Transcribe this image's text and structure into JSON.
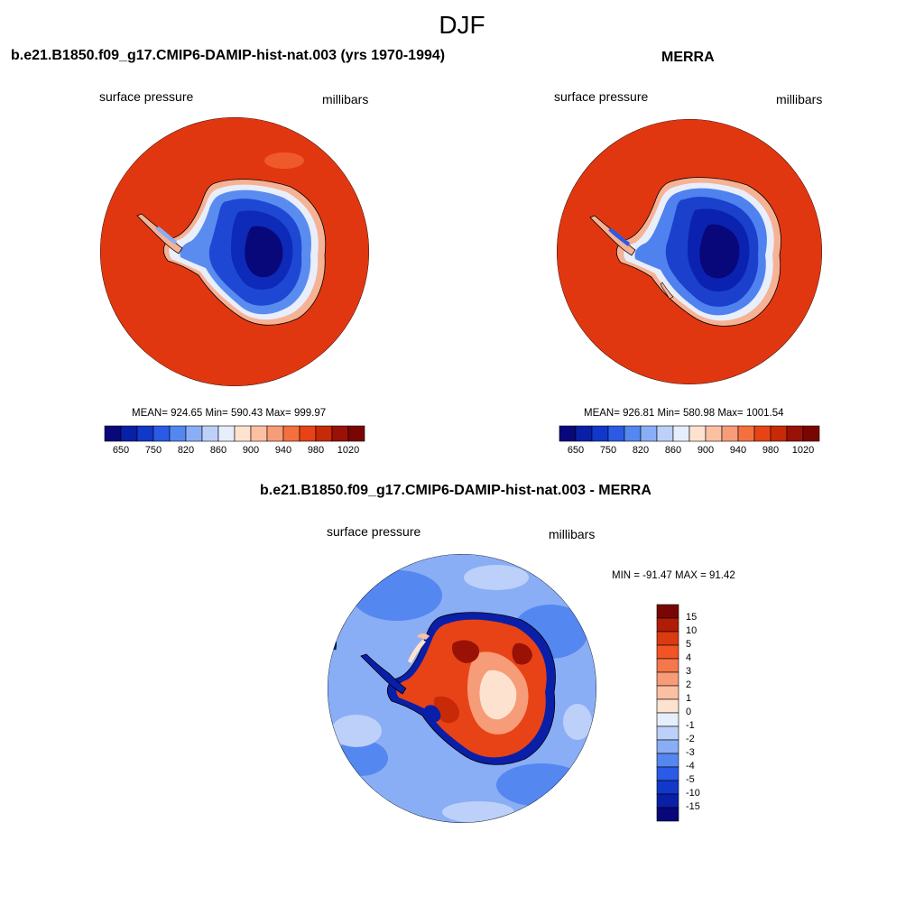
{
  "title": "DJF",
  "panels": [
    {
      "title": "b.e21.B1850.f09_g17.CMIP6-DAMIP-hist-nat.003 (yrs 1970-1994)",
      "left_label": "surface pressure",
      "right_label": "millibars",
      "stats": "MEAN= 924.65  Min= 590.43  Max= 999.97"
    },
    {
      "title": "MERRA",
      "left_label": "surface pressure",
      "right_label": "millibars",
      "stats": "MEAN= 926.81  Min= 580.98  Max= 1001.54"
    },
    {
      "title": "b.e21.B1850.f09_g17.CMIP6-DAMIP-hist-nat.003 - MERRA",
      "left_label": "surface pressure",
      "right_label": "millibars",
      "stats": "MIN = -91.47 MAX =  91.42"
    }
  ],
  "colorbar_abs": {
    "labels": [
      "650",
      "750",
      "820",
      "860",
      "900",
      "940",
      "980",
      "1020"
    ],
    "colors": [
      "#08087a",
      "#0a1fa8",
      "#1138c8",
      "#2a5ae6",
      "#5587f0",
      "#8aaef5",
      "#bcd0f9",
      "#e6eefc",
      "#fde3cf",
      "#fbc0a2",
      "#f79c78",
      "#f4703f",
      "#e84316",
      "#c82a08",
      "#9a1206",
      "#7a0603"
    ]
  },
  "colorbar_diff": {
    "labels": [
      "15",
      "10",
      "5",
      "4",
      "3",
      "2",
      "1",
      "0",
      "-1",
      "-2",
      "-3",
      "-4",
      "-5",
      "-10",
      "-15"
    ],
    "colors": [
      "#7a0603",
      "#b01c06",
      "#dc3a10",
      "#f25424",
      "#f5774c",
      "#f89b78",
      "#fbc0a2",
      "#fde3cf",
      "#e6eefc",
      "#bcd0f9",
      "#8aaef5",
      "#5587f0",
      "#2a5ae6",
      "#1138c8",
      "#0a1fa8",
      "#08087a"
    ]
  },
  "chart_data": [
    {
      "type": "heatmap",
      "title": "b.e21.B1850.f09_g17.CMIP6-DAMIP-hist-nat.003 (yrs 1970-1994)",
      "variable": "surface pressure",
      "units": "millibars",
      "mean": 924.65,
      "min": 590.43,
      "max": 999.97,
      "levels": [
        650,
        750,
        820,
        860,
        900,
        940,
        980,
        1020
      ]
    },
    {
      "type": "heatmap",
      "title": "MERRA",
      "variable": "surface pressure",
      "units": "millibars",
      "mean": 926.81,
      "min": 580.98,
      "max": 1001.54,
      "levels": [
        650,
        750,
        820,
        860,
        900,
        940,
        980,
        1020
      ]
    },
    {
      "type": "heatmap",
      "title": "b.e21.B1850.f09_g17.CMIP6-DAMIP-hist-nat.003 - MERRA",
      "variable": "surface pressure",
      "units": "millibars",
      "min": -91.47,
      "max": 91.42,
      "levels": [
        15,
        10,
        5,
        4,
        3,
        2,
        1,
        0,
        -1,
        -2,
        -3,
        -4,
        -5,
        -10,
        -15
      ]
    }
  ]
}
